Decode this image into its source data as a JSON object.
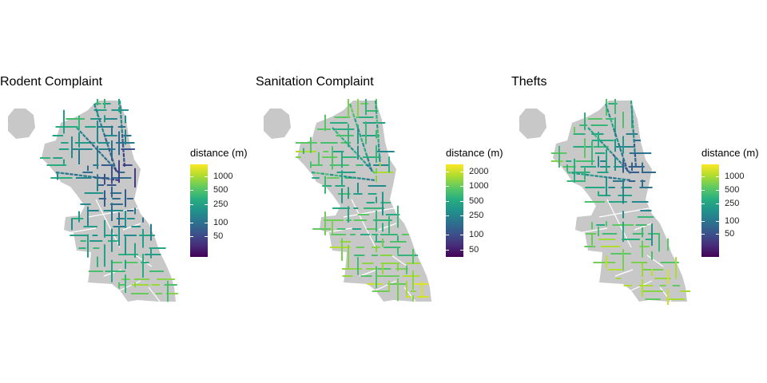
{
  "chart_data": [
    {
      "type": "heatmap",
      "title": "Rodent Complaint",
      "legend": {
        "title": "distance (m)",
        "scale": "log",
        "range": [
          18,
          1800
        ],
        "ticks": [
          50,
          100,
          250,
          500,
          1000
        ],
        "tick_labels": [
          "50",
          "100",
          "250",
          "500",
          "1000"
        ],
        "colormap": "viridis"
      },
      "map_region": "Chicago",
      "pattern": "low distances concentrated in the central/near-north area, higher at periphery"
    },
    {
      "type": "heatmap",
      "title": "Sanitation Complaint",
      "legend": {
        "title": "distance (m)",
        "scale": "log",
        "range": [
          35,
          2800
        ],
        "ticks": [
          50,
          100,
          250,
          500,
          1000,
          2000
        ],
        "tick_labels": [
          "50",
          "100",
          "250",
          "500",
          "1000",
          "2000"
        ],
        "colormap": "viridis"
      },
      "map_region": "Chicago",
      "pattern": "mostly mid-range distances with yellow near the downtown core"
    },
    {
      "type": "heatmap",
      "title": "Thefts",
      "legend": {
        "title": "distance (m)",
        "scale": "log",
        "range": [
          15,
          1900
        ],
        "ticks": [
          50,
          100,
          250,
          500,
          1000
        ],
        "tick_labels": [
          "50",
          "100",
          "250",
          "500",
          "1000"
        ],
        "colormap": "viridis"
      },
      "map_region": "Chicago",
      "pattern": "low distances in downtown, higher on outskirts and far south"
    }
  ],
  "colors": {
    "land": "#c8c8c8",
    "background": "#ffffff",
    "viridis": [
      "#440154",
      "#472d7b",
      "#3b528b",
      "#2c728e",
      "#21918c",
      "#28ae80",
      "#5ec962",
      "#addc30",
      "#fde725"
    ]
  }
}
